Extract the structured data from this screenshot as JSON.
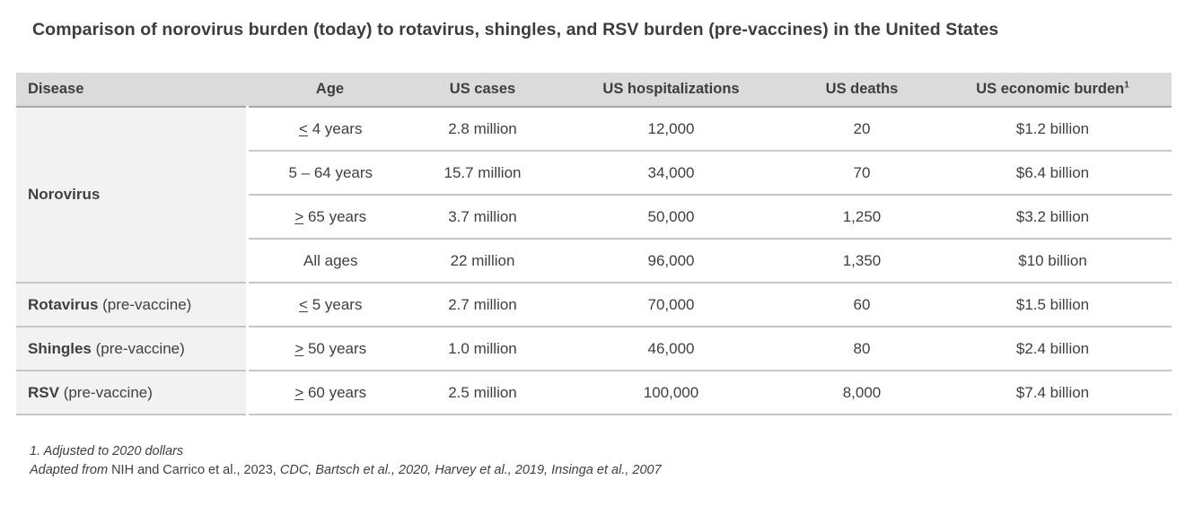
{
  "title": "Comparison of norovirus burden (today) to rotavirus, shingles, and RSV burden (pre-vaccines) in the United States",
  "table": {
    "columns": [
      "Disease",
      "Age",
      "US cases",
      "US hospitalizations",
      "US deaths",
      "US economic burden"
    ],
    "footnote_marker": "1",
    "groups": [
      {
        "disease": "Norovirus",
        "suffix": "",
        "rows": [
          {
            "age": "≤ 4 years",
            "cases": "2.8 million",
            "hospitalizations": "12,000",
            "deaths": "20",
            "economic_burden": "$1.2 billion"
          },
          {
            "age": "5 – 64 years",
            "cases": "15.7 million",
            "hospitalizations": "34,000",
            "deaths": "70",
            "economic_burden": "$6.4 billion"
          },
          {
            "age": "≥ 65 years",
            "cases": "3.7 million",
            "hospitalizations": "50,000",
            "deaths": "1,250",
            "economic_burden": "$3.2 billion"
          },
          {
            "age": "All ages",
            "cases": "22 million",
            "hospitalizations": "96,000",
            "deaths": "1,350",
            "economic_burden": "$10 billion"
          }
        ]
      },
      {
        "disease": "Rotavirus",
        "suffix": "(pre-vaccine)",
        "rows": [
          {
            "age": "≤ 5 years",
            "cases": "2.7 million",
            "hospitalizations": "70,000",
            "deaths": "60",
            "economic_burden": "$1.5 billion"
          }
        ]
      },
      {
        "disease": "Shingles",
        "suffix": "(pre-vaccine)",
        "rows": [
          {
            "age": "≥ 50 years",
            "cases": "1.0 million",
            "hospitalizations": "46,000",
            "deaths": "80",
            "economic_burden": "$2.4 billion"
          }
        ]
      },
      {
        "disease": "RSV",
        "suffix": "(pre-vaccine)",
        "rows": [
          {
            "age": "≥ 60 years",
            "cases": "2.5 million",
            "hospitalizations": "100,000",
            "deaths": "8,000",
            "economic_burden": "$7.4 billion"
          }
        ]
      }
    ]
  },
  "footnotes": {
    "line1": "1. Adjusted to 2020 dollars",
    "line2_parts": [
      {
        "text": "Adapted from ",
        "italic": true
      },
      {
        "text": "NIH and Carrico et al., 2023, ",
        "italic": false
      },
      {
        "text": "CDC, Bartsch et al., 2020, Harvey et al., 2019, Insinga et al., 2007",
        "italic": true
      }
    ]
  },
  "colors": {
    "header_background": "#dbdbdb",
    "disease_column_background": "#f2f2f2",
    "text": "#3f3f3f",
    "row_divider": "#c6c6c6",
    "header_divider": "#a6a6a6"
  }
}
